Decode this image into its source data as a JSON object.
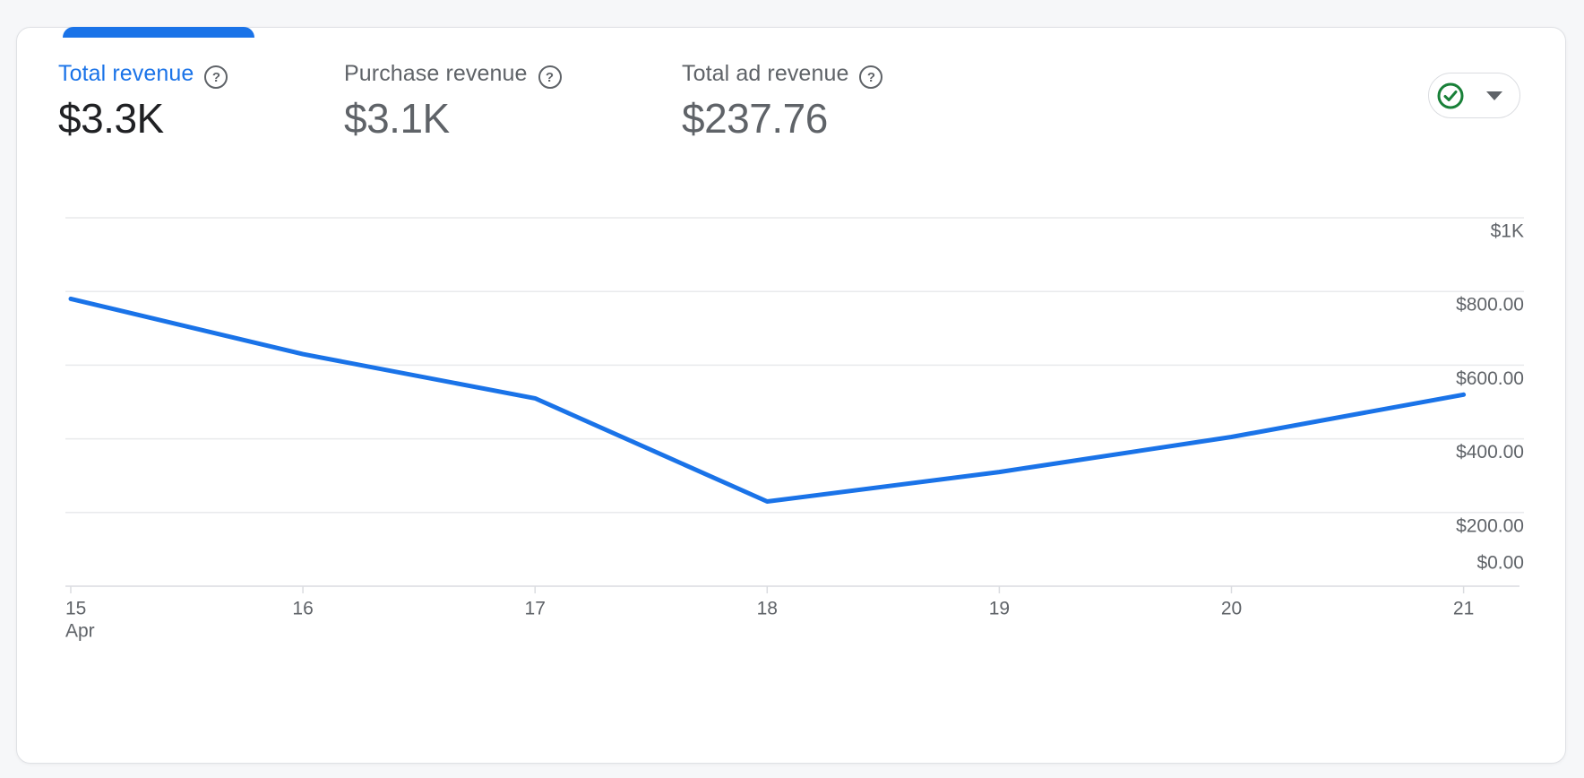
{
  "metrics": {
    "help_icon": "?",
    "tabs": [
      {
        "label": "Total revenue",
        "value": "$3.3K",
        "selected": true
      },
      {
        "label": "Purchase revenue",
        "value": "$3.1K",
        "selected": false
      },
      {
        "label": "Total ad revenue",
        "value": "$237.76",
        "selected": false
      }
    ]
  },
  "status_button": {
    "icon": "check-circle",
    "caret_icon": "chevron-down"
  },
  "chart_data": {
    "type": "line",
    "title": "",
    "xlabel": "",
    "ylabel": "",
    "categories": [
      "15",
      "16",
      "17",
      "18",
      "19",
      "20",
      "21"
    ],
    "month_label": "Apr",
    "series": [
      {
        "name": "Total revenue",
        "values": [
          780,
          630,
          510,
          230,
          310,
          405,
          520
        ]
      }
    ],
    "ylim": [
      0,
      1000
    ],
    "y_ticks": [
      {
        "value": 1000,
        "label": "$1K"
      },
      {
        "value": 800,
        "label": "$800.00"
      },
      {
        "value": 600,
        "label": "$600.00"
      },
      {
        "value": 400,
        "label": "$400.00"
      },
      {
        "value": 200,
        "label": "$200.00"
      },
      {
        "value": 0,
        "label": "$0.00"
      }
    ],
    "grid": true,
    "legend": false,
    "line_color": "#1a73e8"
  },
  "colors": {
    "accent_blue": "#1a73e8",
    "check_green": "#188038",
    "text_primary": "#202124",
    "text_secondary": "#5f6368",
    "gridline": "#e9eaec",
    "axis_line": "#dadce0",
    "card_border": "#dfe1e5",
    "card_bg": "#ffffff",
    "page_bg": "#f6f7f9"
  }
}
